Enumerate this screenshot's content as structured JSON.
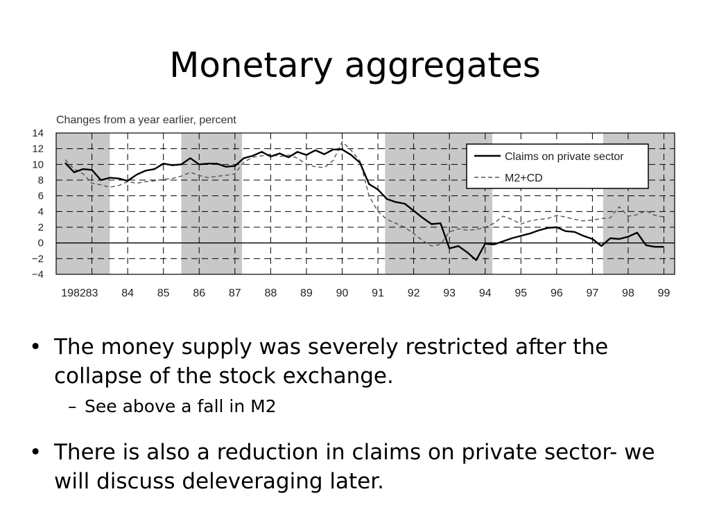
{
  "slide": {
    "title": "Monetary aggregates",
    "bullets": [
      {
        "text": "The money supply was severely restricted after the collapse of the stock exchange.",
        "sub": [
          "See above a fall in M2"
        ]
      },
      {
        "text": "There is also a reduction in claims on private sector- we will discuss deleveraging later.",
        "sub": []
      }
    ]
  },
  "chart_data": {
    "type": "line",
    "title": "Changes from a year earlier, percent",
    "xlabel": "",
    "ylabel": "",
    "xlim": [
      1982,
      1999.3
    ],
    "ylim": [
      -4,
      14
    ],
    "y_ticks": [
      14,
      12,
      10,
      8,
      6,
      4,
      2,
      0,
      -2,
      -4
    ],
    "x_ticks": [
      {
        "value": 1982,
        "label": "1982"
      },
      {
        "value": 1983,
        "label": "83"
      },
      {
        "value": 1984,
        "label": "84"
      },
      {
        "value": 1985,
        "label": "85"
      },
      {
        "value": 1986,
        "label": "86"
      },
      {
        "value": 1987,
        "label": "87"
      },
      {
        "value": 1988,
        "label": "88"
      },
      {
        "value": 1989,
        "label": "89"
      },
      {
        "value": 1990,
        "label": "90"
      },
      {
        "value": 1991,
        "label": "91"
      },
      {
        "value": 1992,
        "label": "92"
      },
      {
        "value": 1993,
        "label": "93"
      },
      {
        "value": 1994,
        "label": "94"
      },
      {
        "value": 1995,
        "label": "95"
      },
      {
        "value": 1996,
        "label": "96"
      },
      {
        "value": 1997,
        "label": "97"
      },
      {
        "value": 1998,
        "label": "98"
      },
      {
        "value": 1999,
        "label": "99"
      }
    ],
    "grid": true,
    "legend_position": "top-right",
    "shaded_periods": [
      [
        1982,
        1983.5
      ],
      [
        1985.5,
        1987.2
      ],
      [
        1991.2,
        1994.2
      ],
      [
        1997.3,
        1999.3
      ]
    ],
    "shading_color": "#c8c8c8",
    "series": [
      {
        "name": "Claims on private sector",
        "style": "solid",
        "color": "#000000",
        "x": [
          1982.25,
          1982.5,
          1982.75,
          1983.0,
          1983.25,
          1983.5,
          1983.75,
          1984.0,
          1984.25,
          1984.5,
          1984.75,
          1985.0,
          1985.25,
          1985.5,
          1985.75,
          1986.0,
          1986.25,
          1986.5,
          1986.75,
          1987.0,
          1987.25,
          1987.5,
          1987.75,
          1988.0,
          1988.25,
          1988.5,
          1988.75,
          1989.0,
          1989.25,
          1989.5,
          1989.75,
          1990.0,
          1990.25,
          1990.5,
          1990.75,
          1991.0,
          1991.25,
          1991.5,
          1991.75,
          1992.0,
          1992.25,
          1992.5,
          1992.75,
          1993.0,
          1993.25,
          1993.5,
          1993.75,
          1994.0,
          1994.25,
          1994.5,
          1994.75,
          1995.0,
          1995.25,
          1995.5,
          1995.75,
          1996.0,
          1996.25,
          1996.5,
          1996.75,
          1997.0,
          1997.25,
          1997.5,
          1997.75,
          1998.0,
          1998.25,
          1998.5,
          1998.75,
          1999.0
        ],
        "values": [
          10.2,
          9.0,
          9.4,
          9.3,
          8.0,
          8.3,
          8.2,
          7.9,
          8.7,
          9.2,
          9.4,
          10.1,
          9.9,
          10.0,
          10.8,
          10.0,
          10.1,
          10.1,
          9.7,
          9.8,
          10.8,
          11.1,
          11.6,
          11.0,
          11.4,
          10.9,
          11.6,
          11.2,
          11.8,
          11.3,
          11.9,
          11.9,
          11.2,
          10.2,
          7.5,
          6.8,
          5.6,
          5.2,
          5.0,
          4.1,
          3.2,
          2.4,
          2.5,
          -0.7,
          -0.4,
          -1.2,
          -2.2,
          -0.1,
          -0.2,
          0.2,
          0.6,
          0.9,
          1.2,
          1.6,
          1.9,
          2.0,
          1.5,
          1.4,
          0.9,
          0.5,
          -0.4,
          0.6,
          0.5,
          0.8,
          1.3,
          -0.3,
          -0.5,
          -0.5
        ]
      },
      {
        "name": "M2+CD",
        "style": "dashed",
        "color": "#555555",
        "x": [
          1982.25,
          1982.5,
          1982.75,
          1983.0,
          1983.25,
          1983.5,
          1983.75,
          1984.0,
          1984.25,
          1984.5,
          1984.75,
          1985.0,
          1985.25,
          1985.5,
          1985.75,
          1986.0,
          1986.25,
          1986.5,
          1986.75,
          1987.0,
          1987.25,
          1987.5,
          1987.75,
          1988.0,
          1988.25,
          1988.5,
          1988.75,
          1989.0,
          1989.25,
          1989.5,
          1989.75,
          1990.0,
          1990.25,
          1990.5,
          1990.75,
          1991.0,
          1991.25,
          1991.5,
          1991.75,
          1992.0,
          1992.25,
          1992.5,
          1992.75,
          1993.0,
          1993.25,
          1993.5,
          1993.75,
          1994.0,
          1994.25,
          1994.5,
          1994.75,
          1995.0,
          1995.25,
          1995.5,
          1995.75,
          1996.0,
          1996.25,
          1996.5,
          1996.75,
          1997.0,
          1997.25,
          1997.5,
          1997.75,
          1998.0,
          1998.25,
          1998.5,
          1998.75,
          1999.0
        ],
        "values": [
          10.6,
          9.4,
          8.8,
          7.6,
          7.4,
          7.1,
          7.3,
          7.8,
          7.6,
          7.8,
          7.9,
          8.1,
          8.2,
          8.5,
          9.0,
          8.6,
          8.3,
          8.5,
          8.6,
          8.8,
          10.3,
          10.9,
          11.1,
          11.3,
          11.0,
          11.2,
          10.8,
          10.0,
          9.7,
          9.6,
          10.5,
          12.9,
          11.8,
          10.4,
          6.0,
          4.0,
          3.0,
          2.5,
          2.0,
          1.2,
          0.3,
          -0.4,
          -0.2,
          1.4,
          1.8,
          1.6,
          1.7,
          2.0,
          2.5,
          3.4,
          3.0,
          2.4,
          2.8,
          3.0,
          3.1,
          3.5,
          3.3,
          3.0,
          2.8,
          2.9,
          3.1,
          3.2,
          4.6,
          3.4,
          3.6,
          4.1,
          3.5,
          3.3
        ]
      }
    ]
  }
}
